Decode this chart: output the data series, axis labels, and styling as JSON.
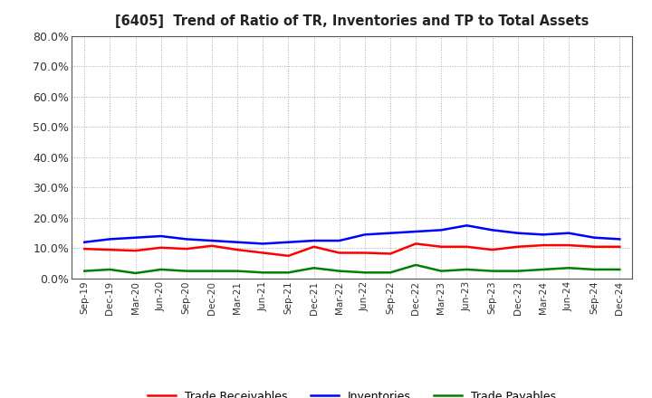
{
  "title": "[6405]  Trend of Ratio of TR, Inventories and TP to Total Assets",
  "x_labels": [
    "Sep-19",
    "Dec-19",
    "Mar-20",
    "Jun-20",
    "Sep-20",
    "Dec-20",
    "Mar-21",
    "Jun-21",
    "Sep-21",
    "Dec-21",
    "Mar-22",
    "Jun-22",
    "Sep-22",
    "Dec-22",
    "Mar-23",
    "Jun-23",
    "Sep-23",
    "Dec-23",
    "Mar-24",
    "Jun-24",
    "Sep-24",
    "Dec-24"
  ],
  "trade_receivables": [
    9.8,
    9.5,
    9.2,
    10.2,
    9.8,
    10.8,
    9.5,
    8.5,
    7.5,
    10.5,
    8.5,
    8.5,
    8.2,
    11.5,
    10.5,
    10.5,
    9.5,
    10.5,
    11.0,
    11.0,
    10.5,
    10.5
  ],
  "inventories": [
    12.0,
    13.0,
    13.5,
    14.0,
    13.0,
    12.5,
    12.0,
    11.5,
    12.0,
    12.5,
    12.5,
    14.5,
    15.0,
    15.5,
    16.0,
    17.5,
    16.0,
    15.0,
    14.5,
    15.0,
    13.5,
    13.0
  ],
  "trade_payables": [
    2.5,
    3.0,
    1.8,
    3.0,
    2.5,
    2.5,
    2.5,
    2.0,
    2.0,
    3.5,
    2.5,
    2.0,
    2.0,
    4.5,
    2.5,
    3.0,
    2.5,
    2.5,
    3.0,
    3.5,
    3.0,
    3.0
  ],
  "tr_color": "#FF0000",
  "inv_color": "#0000FF",
  "tp_color": "#008000",
  "ylim": [
    0,
    80
  ],
  "yticks": [
    0,
    10,
    20,
    30,
    40,
    50,
    60,
    70,
    80
  ],
  "background_color": "#FFFFFF",
  "grid_color": "#AAAAAA"
}
